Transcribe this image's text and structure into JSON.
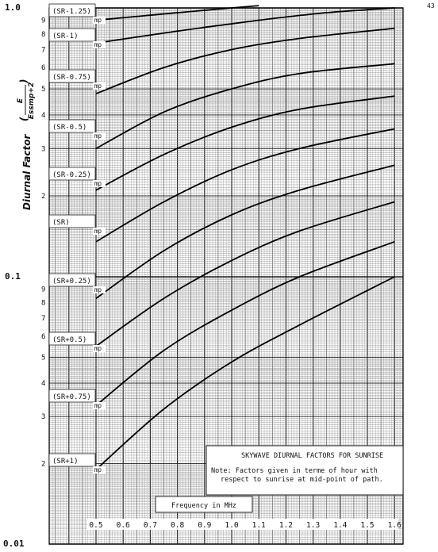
{
  "page_number": "43",
  "chart_data": {
    "type": "line",
    "title": "SKYWAVE DIURNAL FACTORS FOR SUNRISE",
    "note_lines": [
      "Note: Factors given in terme of hour with",
      "respect to sunrise at mid-point of path."
    ],
    "xlabel": "Frequency in MHz",
    "ylabel": "Diurnal Factor",
    "ylabel_fraction": {
      "numerator": "E",
      "denominator": "Essmp+2"
    },
    "yscale": "log",
    "ylim": [
      0.01,
      1.0
    ],
    "xlim": [
      0.5,
      1.6
    ],
    "grid": true,
    "x_ticks": [
      "0.5",
      "0.6",
      "0.7",
      "0.8",
      "0.9",
      "1.0",
      "1.1",
      "1.2",
      "1.3",
      "1.4",
      "1.5",
      "1.6"
    ],
    "y_major_ticks": [
      {
        "value": 1.0,
        "label": "1.0"
      },
      {
        "value": 0.1,
        "label": "0.1"
      },
      {
        "value": 0.01,
        "label": "0.01"
      }
    ],
    "y_minor_ticks": [
      {
        "value": 0.9,
        "label": "9"
      },
      {
        "value": 0.8,
        "label": "8"
      },
      {
        "value": 0.7,
        "label": "7"
      },
      {
        "value": 0.6,
        "label": "6"
      },
      {
        "value": 0.5,
        "label": "5"
      },
      {
        "value": 0.4,
        "label": "4"
      },
      {
        "value": 0.3,
        "label": "3"
      },
      {
        "value": 0.2,
        "label": "2"
      },
      {
        "value": 0.09,
        "label": "9"
      },
      {
        "value": 0.08,
        "label": "8"
      },
      {
        "value": 0.07,
        "label": "7"
      },
      {
        "value": 0.06,
        "label": "6"
      },
      {
        "value": 0.05,
        "label": "5"
      },
      {
        "value": 0.04,
        "label": "4"
      },
      {
        "value": 0.03,
        "label": "3"
      },
      {
        "value": 0.02,
        "label": "2"
      }
    ],
    "curve_suffix": "mp",
    "series": [
      {
        "name": "(SR-1.25)",
        "x": [
          0.5,
          0.75,
          1.0,
          1.1
        ],
        "y": [
          0.9,
          0.95,
          1.0,
          1.02
        ]
      },
      {
        "name": "(SR-1)",
        "x": [
          0.5,
          0.8,
          1.1,
          1.35,
          1.6
        ],
        "y": [
          0.74,
          0.82,
          0.9,
          0.96,
          1.0
        ]
      },
      {
        "name": "(SR-0.75)",
        "x": [
          0.5,
          0.75,
          1.0,
          1.25,
          1.6
        ],
        "y": [
          0.48,
          0.6,
          0.7,
          0.77,
          0.84
        ]
      },
      {
        "name": "(SR-0.5)",
        "x": [
          0.5,
          0.75,
          1.0,
          1.25,
          1.6
        ],
        "y": [
          0.3,
          0.41,
          0.5,
          0.57,
          0.62
        ]
      },
      {
        "name": "(SR-0.25)",
        "x": [
          0.5,
          0.75,
          1.0,
          1.25,
          1.6
        ],
        "y": [
          0.21,
          0.285,
          0.36,
          0.42,
          0.47
        ]
      },
      {
        "name": "(SR)",
        "x": [
          0.5,
          0.75,
          1.0,
          1.25,
          1.6
        ],
        "y": [
          0.135,
          0.19,
          0.25,
          0.3,
          0.355
        ]
      },
      {
        "name": "(SR+0.25)",
        "x": [
          0.5,
          0.75,
          1.0,
          1.25,
          1.6
        ],
        "y": [
          0.083,
          0.125,
          0.17,
          0.21,
          0.26
        ]
      },
      {
        "name": "(SR+0.5)",
        "x": [
          0.5,
          0.75,
          1.0,
          1.25,
          1.6
        ],
        "y": [
          0.055,
          0.083,
          0.115,
          0.148,
          0.19
        ]
      },
      {
        "name": "(SR+0.75)",
        "x": [
          0.5,
          0.75,
          1.0,
          1.25,
          1.6
        ],
        "y": [
          0.033,
          0.053,
          0.075,
          0.1,
          0.135
        ]
      },
      {
        "name": "(SR+1)",
        "x": [
          0.5,
          0.75,
          1.0,
          1.25,
          1.6
        ],
        "y": [
          0.019,
          0.032,
          0.048,
          0.066,
          0.1
        ]
      }
    ]
  }
}
